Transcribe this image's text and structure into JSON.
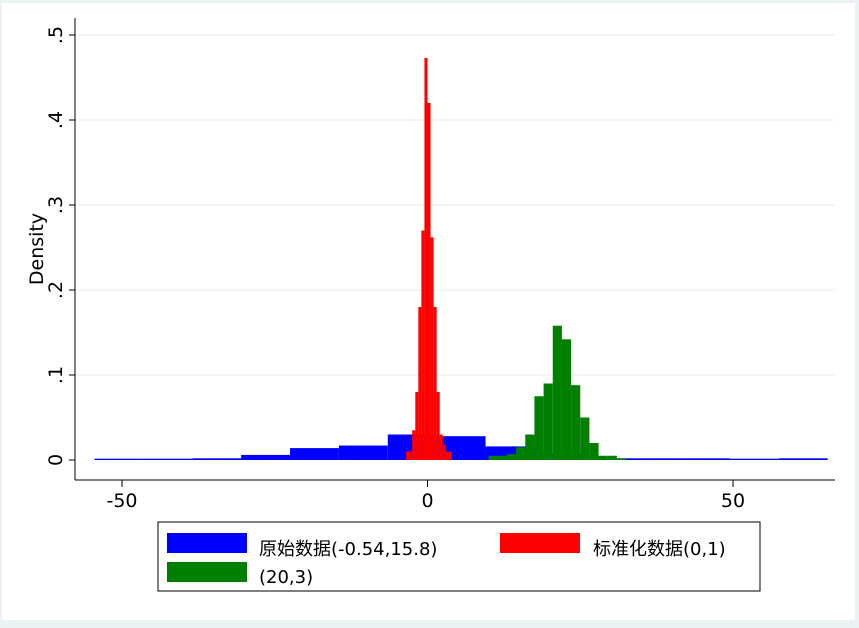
{
  "chart_data": {
    "type": "bar",
    "ylabel": "Density",
    "xlabel": "",
    "xlim": [
      -55,
      67
    ],
    "ylim": [
      0,
      0.5
    ],
    "x_ticks": [
      {
        "value": -50,
        "label": "-50"
      },
      {
        "value": 0,
        "label": "0"
      },
      {
        "value": 50,
        "label": "50"
      }
    ],
    "y_ticks": [
      {
        "value": 0,
        "label": "0"
      },
      {
        "value": 0.1,
        "label": ".1"
      },
      {
        "value": 0.2,
        "label": ".2"
      },
      {
        "value": 0.3,
        "label": ".3"
      },
      {
        "value": 0.4,
        "label": ".4"
      },
      {
        "value": 0.5,
        "label": ".5"
      }
    ],
    "grid": true,
    "legend_position": "bottom",
    "series": [
      {
        "name": "原始数据(-0.54,15.8)",
        "color": "#0000ff",
        "bins": [
          {
            "x0": -54.5,
            "x1": -46.5,
            "y": 0.001
          },
          {
            "x0": -46.5,
            "x1": -38.5,
            "y": 0.001
          },
          {
            "x0": -38.5,
            "x1": -30.5,
            "y": 0.002
          },
          {
            "x0": -30.5,
            "x1": -22.5,
            "y": 0.006
          },
          {
            "x0": -22.5,
            "x1": -14.5,
            "y": 0.014
          },
          {
            "x0": -14.5,
            "x1": -6.5,
            "y": 0.017
          },
          {
            "x0": -6.5,
            "x1": 1.5,
            "y": 0.03
          },
          {
            "x0": 1.5,
            "x1": 9.5,
            "y": 0.028
          },
          {
            "x0": 9.5,
            "x1": 17.5,
            "y": 0.016
          },
          {
            "x0": 17.5,
            "x1": 25.5,
            "y": 0.007
          },
          {
            "x0": 25.5,
            "x1": 33.5,
            "y": 0.002
          },
          {
            "x0": 33.5,
            "x1": 41.5,
            "y": 0.002
          },
          {
            "x0": 41.5,
            "x1": 49.5,
            "y": 0.002
          },
          {
            "x0": 49.5,
            "x1": 57.5,
            "y": 0.0
          },
          {
            "x0": 57.5,
            "x1": 65.5,
            "y": 0.002
          }
        ]
      },
      {
        "name": "标准化数据(0,1)",
        "color": "#ff0000",
        "bins": [
          {
            "x0": -3.5,
            "x1": -3.0,
            "y": 0.01
          },
          {
            "x0": -3.0,
            "x1": -2.5,
            "y": 0.01
          },
          {
            "x0": -2.5,
            "x1": -2.0,
            "y": 0.035
          },
          {
            "x0": -2.0,
            "x1": -1.5,
            "y": 0.08
          },
          {
            "x0": -1.5,
            "x1": -1.0,
            "y": 0.18
          },
          {
            "x0": -1.0,
            "x1": -0.5,
            "y": 0.27
          },
          {
            "x0": -0.5,
            "x1": 0.0,
            "y": 0.473
          },
          {
            "x0": 0.0,
            "x1": 0.5,
            "y": 0.42
          },
          {
            "x0": 0.5,
            "x1": 1.0,
            "y": 0.262
          },
          {
            "x0": 1.0,
            "x1": 1.5,
            "y": 0.18
          },
          {
            "x0": 1.5,
            "x1": 2.0,
            "y": 0.08
          },
          {
            "x0": 2.0,
            "x1": 2.5,
            "y": 0.03
          },
          {
            "x0": 2.5,
            "x1": 3.0,
            "y": 0.018
          },
          {
            "x0": 3.0,
            "x1": 3.5,
            "y": 0.01
          },
          {
            "x0": 3.5,
            "x1": 4.0,
            "y": 0.01
          }
        ]
      },
      {
        "name": "(20,3)",
        "color": "#007f00",
        "bins": [
          {
            "x0": 10.0,
            "x1": 11.5,
            "y": 0.005
          },
          {
            "x0": 11.5,
            "x1": 13.0,
            "y": 0.005
          },
          {
            "x0": 13.0,
            "x1": 14.5,
            "y": 0.007
          },
          {
            "x0": 14.5,
            "x1": 16.0,
            "y": 0.015
          },
          {
            "x0": 16.0,
            "x1": 17.5,
            "y": 0.03
          },
          {
            "x0": 17.5,
            "x1": 19.0,
            "y": 0.075
          },
          {
            "x0": 19.0,
            "x1": 20.5,
            "y": 0.09
          },
          {
            "x0": 20.5,
            "x1": 22.0,
            "y": 0.158
          },
          {
            "x0": 22.0,
            "x1": 23.5,
            "y": 0.142
          },
          {
            "x0": 23.5,
            "x1": 25.0,
            "y": 0.088
          },
          {
            "x0": 25.0,
            "x1": 26.5,
            "y": 0.05
          },
          {
            "x0": 26.5,
            "x1": 28.0,
            "y": 0.02
          },
          {
            "x0": 28.0,
            "x1": 29.5,
            "y": 0.005
          },
          {
            "x0": 29.5,
            "x1": 31.0,
            "y": 0.005
          },
          {
            "x0": 31.0,
            "x1": 32.5,
            "y": 0.002
          }
        ]
      }
    ]
  }
}
